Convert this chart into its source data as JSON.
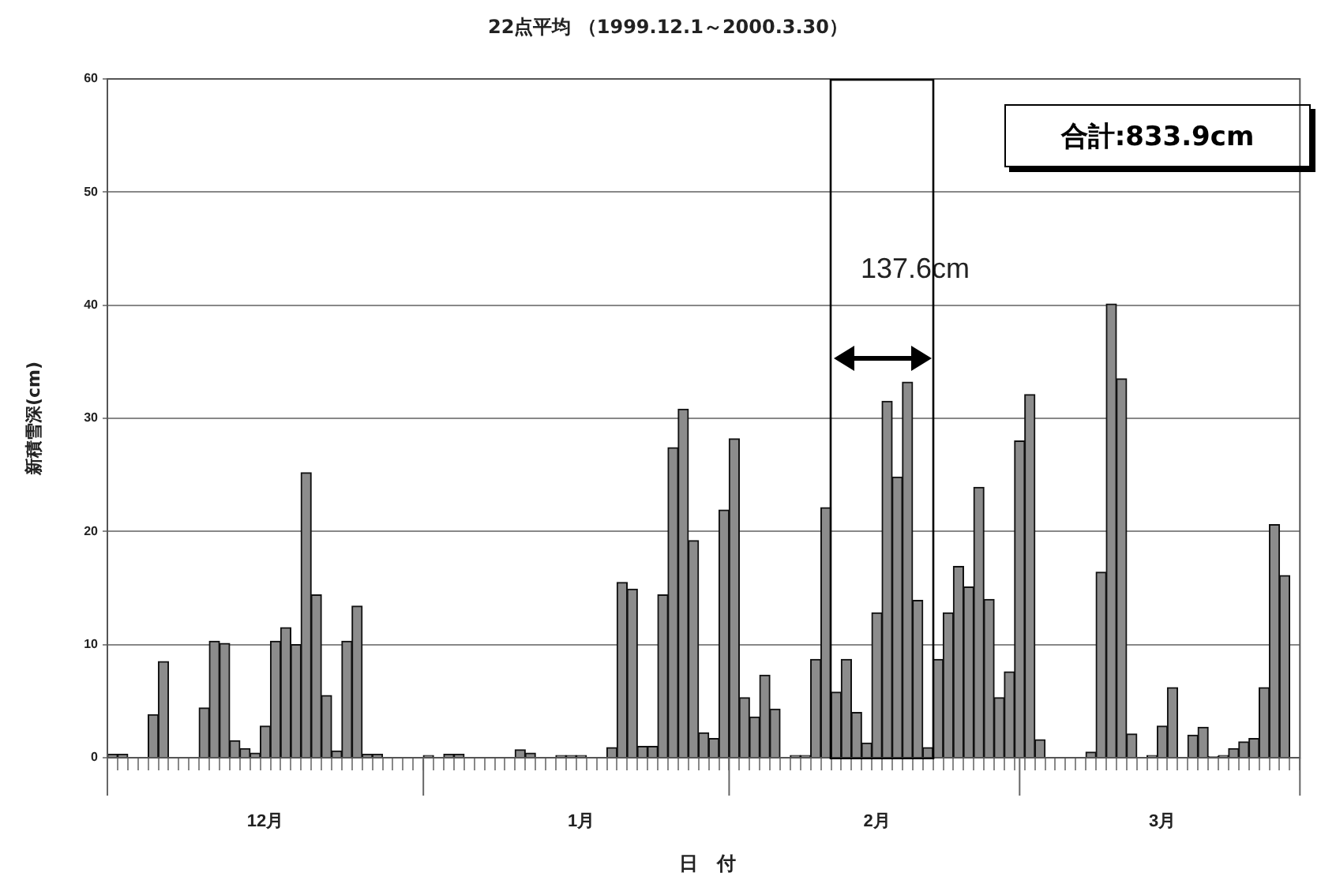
{
  "chart_data": {
    "type": "bar",
    "title": "22点平均 （1999.12.1～2000.3.30）",
    "xlabel": "日　付",
    "ylabel": "新積雪深(cm)",
    "categories": [
      null,
      null,
      null,
      null,
      null,
      null,
      null,
      null,
      null,
      null,
      null,
      null,
      null,
      null,
      null,
      "12月",
      null,
      null,
      null,
      null,
      null,
      null,
      null,
      null,
      null,
      null,
      null,
      null,
      null,
      null,
      null,
      null,
      null,
      null,
      null,
      null,
      null,
      null,
      null,
      null,
      null,
      null,
      null,
      null,
      null,
      null,
      "1月",
      null,
      null,
      null,
      null,
      null,
      null,
      null,
      null,
      null,
      null,
      null,
      null,
      null,
      null,
      null,
      null,
      null,
      null,
      null,
      null,
      null,
      null,
      null,
      null,
      null,
      null,
      null,
      null,
      "2月",
      null,
      null,
      null,
      null,
      null,
      null,
      null,
      null,
      null,
      null,
      null,
      null,
      null,
      null,
      null,
      null,
      null,
      null,
      null,
      null,
      null,
      null,
      null,
      null,
      null,
      null,
      null,
      "3月",
      null,
      null,
      null,
      null,
      null,
      null,
      null,
      null,
      null,
      null,
      null,
      null,
      null
    ],
    "values": [
      0.3,
      0.3,
      0,
      0,
      3.8,
      8.5,
      0,
      0,
      0,
      4.4,
      10.3,
      10.1,
      1.5,
      0.8,
      0.4,
      2.8,
      10.3,
      11.5,
      10.0,
      25.2,
      14.4,
      5.5,
      0.6,
      10.3,
      13.4,
      0.3,
      0.3,
      0,
      0,
      0,
      0,
      0.2,
      0,
      0.3,
      0.3,
      0,
      0,
      0,
      0,
      0,
      0.7,
      0.4,
      0,
      0,
      0.2,
      0.2,
      0.2,
      0,
      0,
      0.9,
      15.5,
      14.9,
      1.0,
      1.0,
      14.4,
      27.4,
      30.8,
      19.2,
      2.2,
      1.7,
      21.9,
      28.2,
      5.3,
      3.6,
      7.3,
      4.3,
      0,
      0.2,
      0.2,
      8.7,
      22.1,
      5.8,
      8.7,
      4.0,
      1.3,
      12.8,
      31.5,
      24.8,
      33.2,
      13.9,
      0.9,
      8.7,
      12.8,
      16.9,
      15.1,
      23.9,
      14.0,
      5.3,
      7.6,
      28.0,
      32.1,
      1.6,
      0,
      0,
      0,
      0,
      0.5,
      16.4,
      40.1,
      33.5,
      2.1,
      0,
      0.2,
      2.8,
      6.2,
      0,
      2.0,
      2.7,
      0.1,
      0.2,
      0.8,
      1.4,
      1.7,
      6.2,
      20.6,
      16.1,
      0
    ],
    "color": "#8c8c8c",
    "ylim": [
      0,
      60
    ],
    "yticks": [
      0,
      10,
      20,
      30,
      40,
      50,
      60
    ],
    "grid": "y",
    "annotations": [
      "合計:833.9cm",
      "137.6cm"
    ]
  }
}
